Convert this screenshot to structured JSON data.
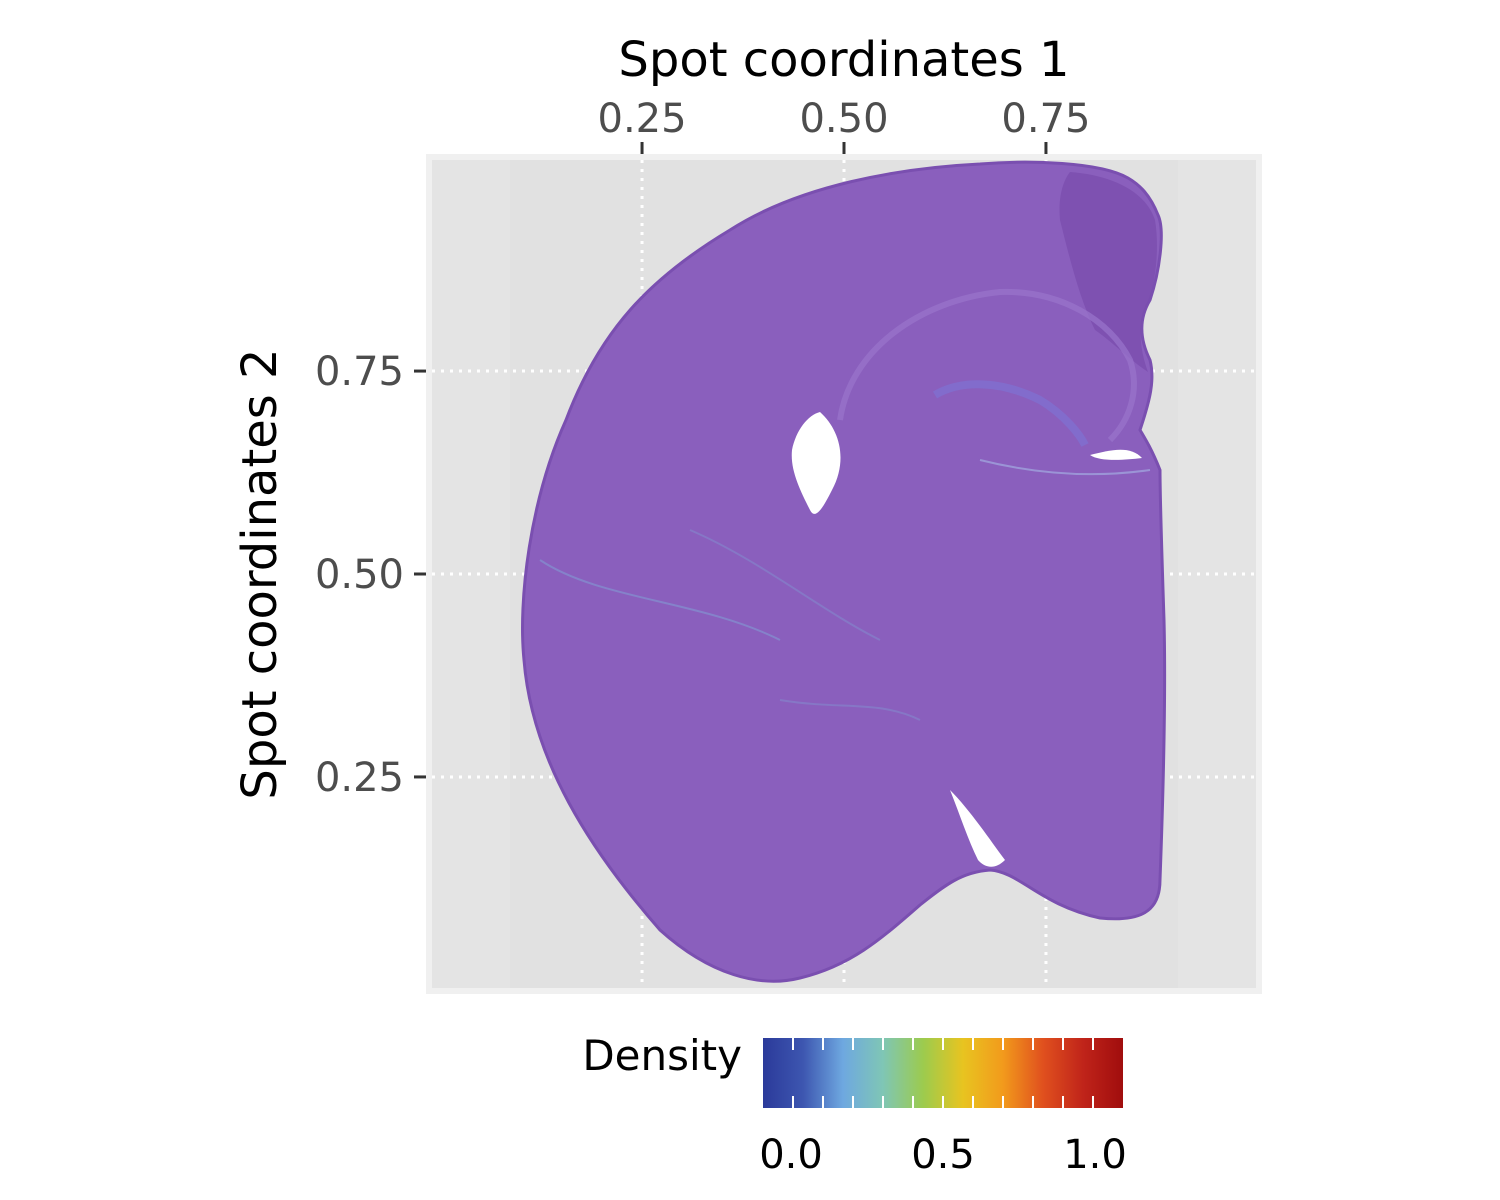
{
  "chart_data": {
    "type": "spatial-density-overlay",
    "title": "",
    "xlabel": "Spot coordinates 1",
    "ylabel": "Spot coordinates 2",
    "x_axis_position": "top",
    "x_ticks": [
      0.25,
      0.5,
      0.75
    ],
    "x_tick_labels": [
      "0.25",
      "0.50",
      "0.75"
    ],
    "y_ticks": [
      0.25,
      0.5,
      0.75
    ],
    "y_tick_labels": [
      "0.25",
      "0.50",
      "0.75"
    ],
    "xlim": [
      -0.01,
      1.01
    ],
    "ylim": [
      -0.01,
      1.01
    ],
    "grid": "dotted-white",
    "background_image": "H&E-stained coronal mouse brain section (hemisphere)",
    "legend": {
      "title": "Density",
      "position": "bottom",
      "range": [
        0.0,
        1.0
      ],
      "ticks": [
        0.0,
        0.5,
        1.0
      ],
      "tick_labels": [
        "0.0",
        "0.5",
        "1.0"
      ],
      "colors": [
        "#2b3a9a",
        "#3d56b0",
        "#6ea8e0",
        "#7fc6b5",
        "#9ccb4e",
        "#e8c420",
        "#f29a1c",
        "#e0501e",
        "#c0241a",
        "#a00d0d"
      ]
    },
    "colors": {
      "panel_bg": "#e4e4e4",
      "panel_border": "#f0f0f0",
      "tissue_fill": "#8a5fbd",
      "tissue_edge": "#7a4fb0"
    }
  }
}
